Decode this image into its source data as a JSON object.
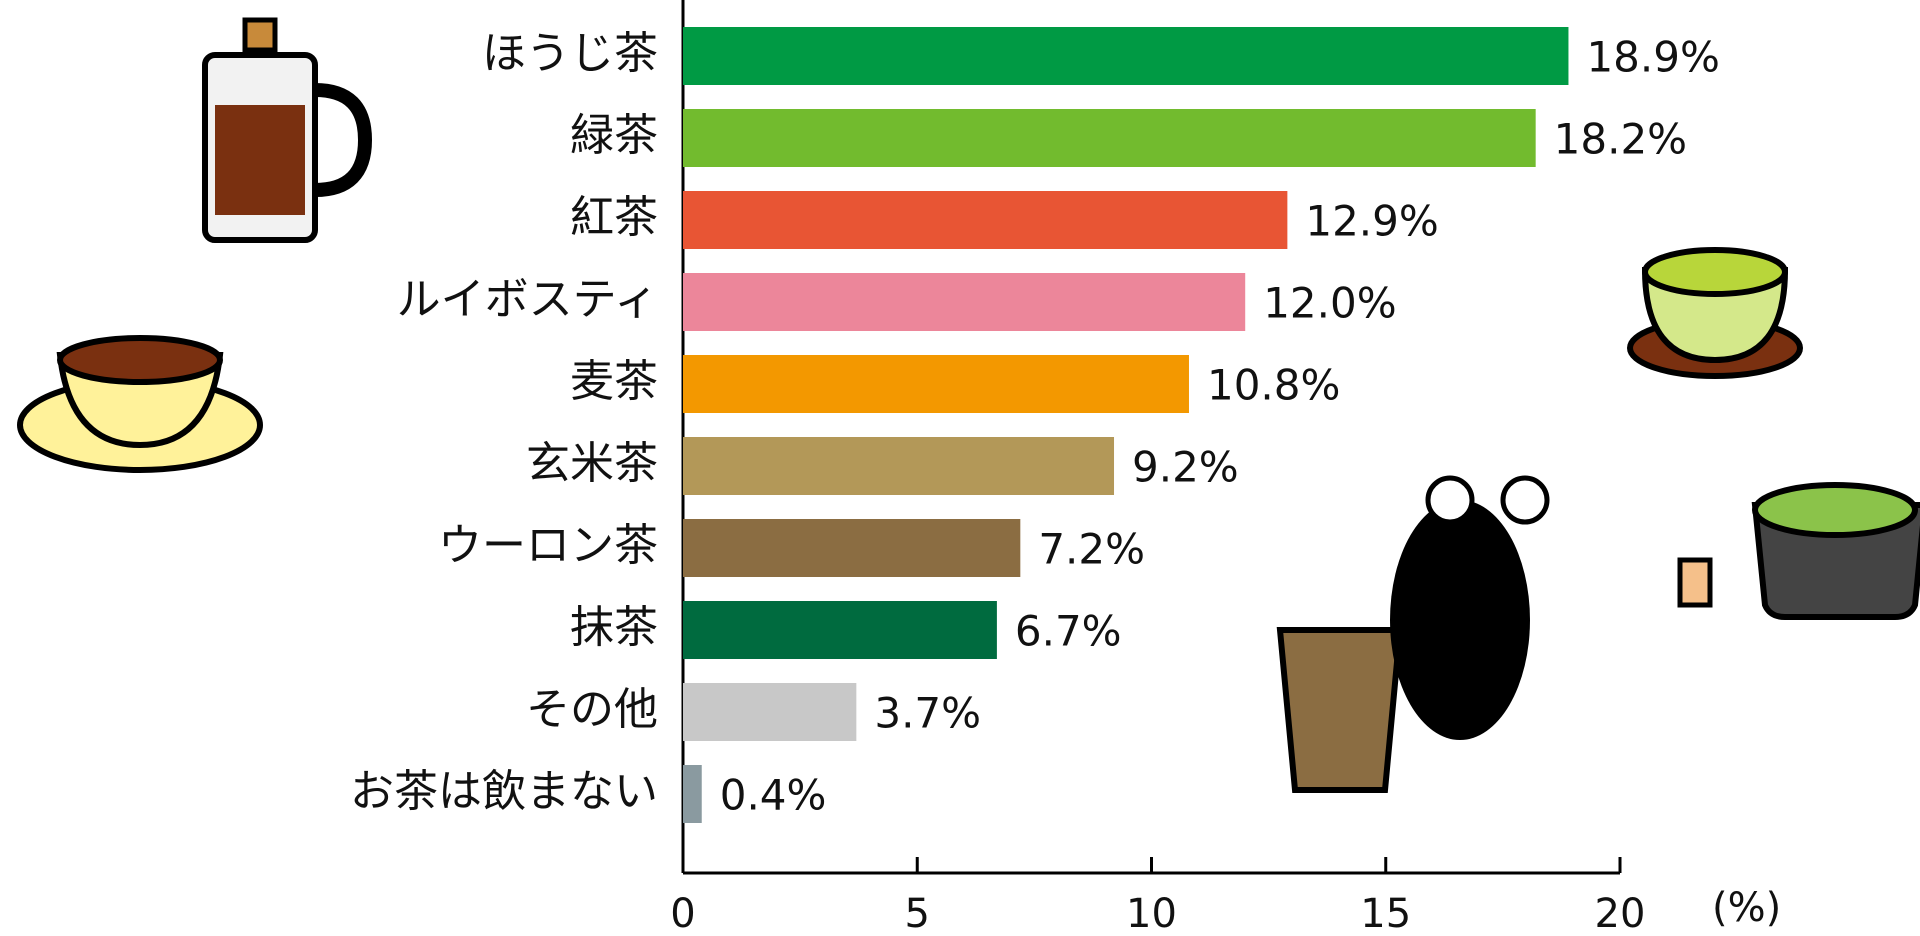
{
  "chart_data": {
    "type": "bar",
    "orientation": "horizontal",
    "categories": [
      "ほうじ茶",
      "緑茶",
      "紅茶",
      "ルイボスティ",
      "麦茶",
      "玄米茶",
      "ウーロン茶",
      "抹茶",
      "その他",
      "お茶は飲まない"
    ],
    "values": [
      18.9,
      18.2,
      12.9,
      12.0,
      10.8,
      9.2,
      7.2,
      6.7,
      3.7,
      0.4
    ],
    "value_labels": [
      "18.9%",
      "18.2%",
      "12.9%",
      "12.0%",
      "10.8%",
      "9.2%",
      "7.2%",
      "6.7%",
      "3.7%",
      "0.4%"
    ],
    "colors": [
      "#009a44",
      "#72bb2e",
      "#e85534",
      "#ec869a",
      "#f39800",
      "#b39858",
      "#8b6d42",
      "#006b3f",
      "#c8c8c8",
      "#8a9aa0"
    ],
    "xlim": [
      0,
      20
    ],
    "xticks": [
      0,
      5,
      10,
      15,
      20
    ],
    "x_unit_label": "(%)"
  }
}
